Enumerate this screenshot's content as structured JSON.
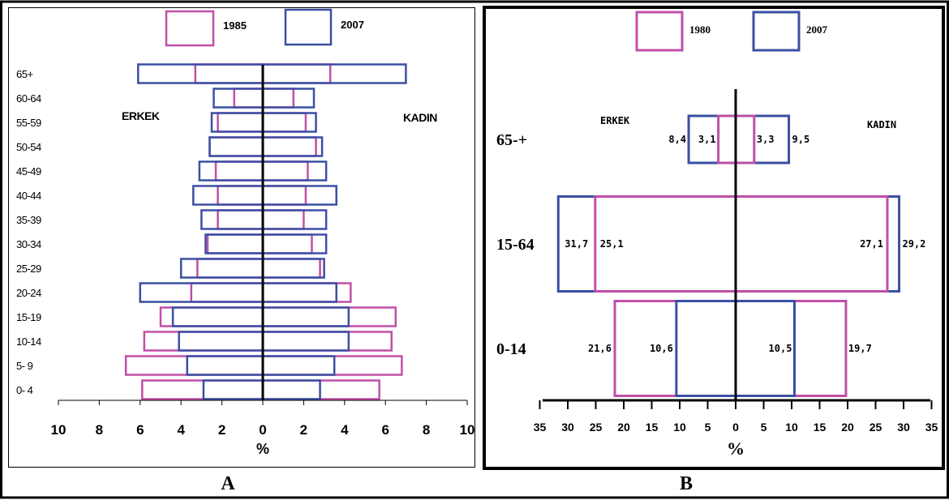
{
  "colors": {
    "series_old": "#c04fa6",
    "series_new": "#3b4fa3",
    "axis": "#000000"
  },
  "captions": {
    "left": "A",
    "right": "B"
  },
  "chart_data": [
    {
      "type": "bar",
      "subtype": "population-pyramid",
      "legend": [
        "1985",
        "2007"
      ],
      "side_labels": {
        "left": "ERKEK",
        "right": "KADIN"
      },
      "xlabel": "%",
      "xlim": [
        -10,
        10
      ],
      "xticks": [
        "10",
        "8",
        "6",
        "4",
        "2",
        "0",
        "2",
        "4",
        "6",
        "8",
        "10"
      ],
      "categories": [
        "65+",
        "60-64",
        "55-59",
        "50-54",
        "45-49",
        "40-44",
        "35-39",
        "30-34",
        "25-29",
        "20-24",
        "15-19",
        "10-14",
        "5- 9",
        "0- 4"
      ],
      "series": [
        {
          "name": "1985",
          "male": [
            3.3,
            1.4,
            2.2,
            2.6,
            2.3,
            2.2,
            2.2,
            2.7,
            3.2,
            3.5,
            5.0,
            5.8,
            6.7,
            5.9
          ],
          "female": [
            3.3,
            1.5,
            2.1,
            2.6,
            2.2,
            2.1,
            2.0,
            2.4,
            2.8,
            4.3,
            6.5,
            6.3,
            6.8,
            5.7
          ]
        },
        {
          "name": "2007",
          "male": [
            6.1,
            2.4,
            2.5,
            2.6,
            3.1,
            3.4,
            3.0,
            2.8,
            4.0,
            6.0,
            4.4,
            4.1,
            3.7,
            2.9
          ],
          "female": [
            7.0,
            2.5,
            2.6,
            2.9,
            3.1,
            3.6,
            3.1,
            3.1,
            3.0,
            3.6,
            4.2,
            4.2,
            3.5,
            2.8
          ]
        }
      ]
    },
    {
      "type": "bar",
      "subtype": "population-pyramid",
      "legend": [
        "1980",
        "2007"
      ],
      "side_labels": {
        "left": "ERKEK",
        "right": "KADIN"
      },
      "xlabel": "%",
      "xlim": [
        -35,
        35
      ],
      "xticks": [
        "35",
        "30",
        "25",
        "20",
        "15",
        "10",
        "5",
        "0",
        "5",
        "10",
        "15",
        "20",
        "25",
        "30",
        "35"
      ],
      "categories": [
        "65-+",
        "15-64",
        "0-14"
      ],
      "series": [
        {
          "name": "1980",
          "male": [
            3.1,
            25.1,
            21.6
          ],
          "female": [
            3.3,
            27.1,
            19.7
          ],
          "male_labels": [
            "3,1",
            "25,1",
            "21,6"
          ],
          "female_labels": [
            "3,3",
            "27,1",
            "19,7"
          ]
        },
        {
          "name": "2007",
          "male": [
            8.4,
            31.7,
            10.6
          ],
          "female": [
            9.5,
            29.2,
            10.5
          ],
          "male_labels": [
            "8,4",
            "31,7",
            "10,6"
          ],
          "female_labels": [
            "9,5",
            "29,2",
            "10,5"
          ]
        }
      ]
    }
  ]
}
